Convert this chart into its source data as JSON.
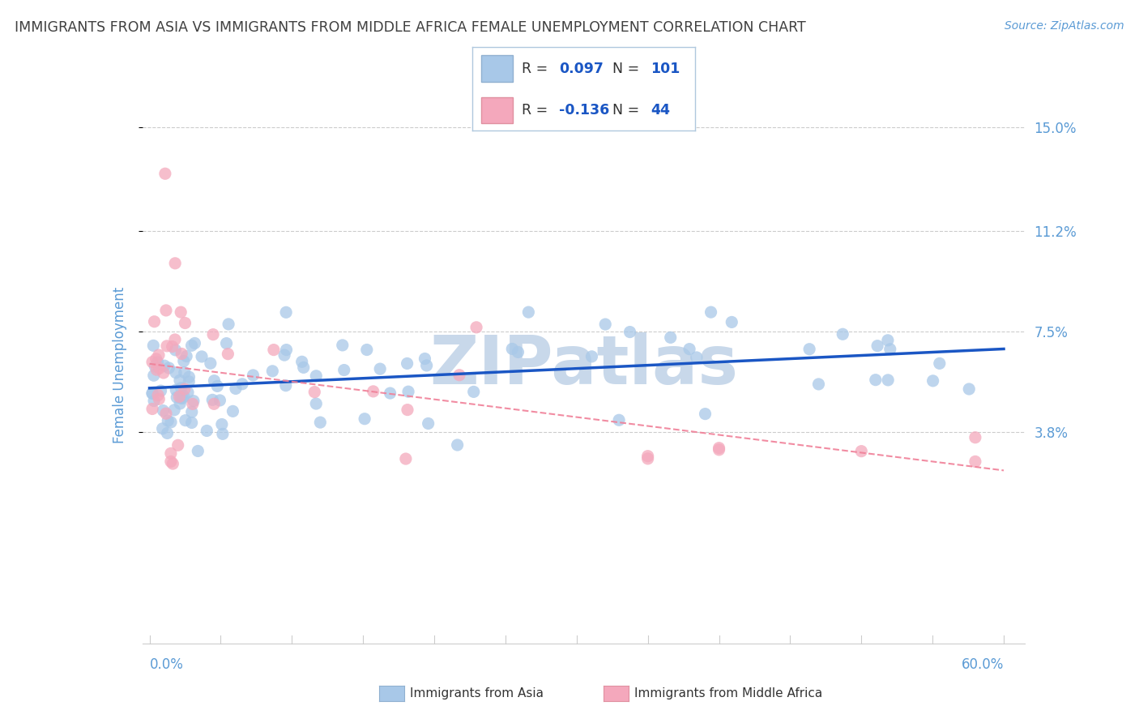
{
  "title": "IMMIGRANTS FROM ASIA VS IMMIGRANTS FROM MIDDLE AFRICA FEMALE UNEMPLOYMENT CORRELATION CHART",
  "source": "Source: ZipAtlas.com",
  "ylabel": "Female Unemployment",
  "ytick_values": [
    0.038,
    0.075,
    0.112,
    0.15
  ],
  "ytick_labels": [
    "3.8%",
    "7.5%",
    "11.2%",
    "15.0%"
  ],
  "xlim": [
    0.0,
    0.6
  ],
  "ylim": [
    -0.04,
    0.165
  ],
  "color_asia": "#a8c8e8",
  "color_africa": "#f4a8bc",
  "color_asia_line": "#1a56c4",
  "color_africa_line": "#f08098",
  "r_asia": 0.097,
  "n_asia": 101,
  "r_africa": -0.136,
  "n_africa": 44,
  "watermark": "ZIPatlas",
  "watermark_color": "#c8d8ea",
  "title_color": "#404040",
  "axis_label_color": "#5b9bd5",
  "tick_label_color": "#5b9bd5",
  "legend_text_color": "#333333",
  "legend_value_color": "#1a56c4",
  "grid_color": "#cccccc"
}
